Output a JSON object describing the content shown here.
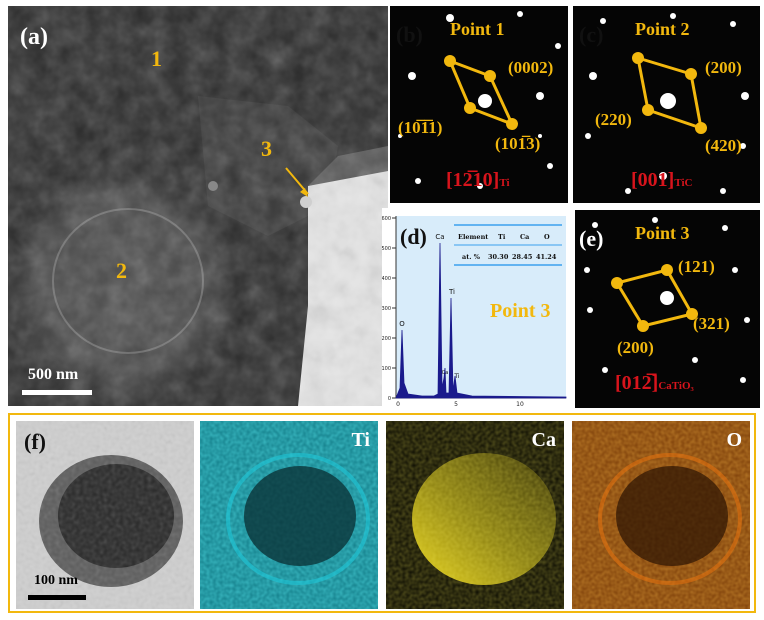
{
  "panel_a": {
    "label": "(a)",
    "regions": [
      "1",
      "2",
      "3"
    ],
    "scale_bar": "500 nm"
  },
  "panel_b": {
    "label": "(b)",
    "title": "Point 1",
    "spots": [
      "(0002)",
      "(10̅1̅1)",
      "(101̅3)"
    ],
    "zone_axis": "[12̅10]",
    "phase": "Ti"
  },
  "panel_c": {
    "label": "(c)",
    "title": "Point 2",
    "spots": [
      "(200)",
      "(220)",
      "(420)"
    ],
    "zone_axis": "[001]",
    "phase": "TiC"
  },
  "panel_d": {
    "label": "(d)",
    "title": "Point 3",
    "table_header": [
      "Element",
      "Ti",
      "Ca",
      "O"
    ],
    "table_row": [
      "at. %",
      "30.30",
      "28.45",
      "41.24"
    ],
    "x_ticks": [
      "0",
      "5",
      "10"
    ],
    "y_ticks": [
      "0",
      "100",
      "200",
      "300",
      "400",
      "500",
      "600"
    ],
    "peak_labels": [
      "O",
      "Ca",
      "Ti",
      "Ca",
      "Ti"
    ],
    "colors": {
      "background": "#d8ecfa",
      "spectrum": "#1a1a8c"
    }
  },
  "panel_e": {
    "label": "(e)",
    "title": "Point 3",
    "spots": [
      "(121)",
      "(321)",
      "(200)"
    ],
    "zone_axis": "[012̅]",
    "phase": "CaTiO₃"
  },
  "panel_f": {
    "label": "(f)",
    "scale_bar": "100 nm",
    "maps": [
      {
        "element": "Ti",
        "color": "#1fc8d8"
      },
      {
        "element": "Ca",
        "color": "#e6d21a"
      },
      {
        "element": "O",
        "color": "#e8720f"
      }
    ],
    "frame_color": "#f2b80e"
  }
}
